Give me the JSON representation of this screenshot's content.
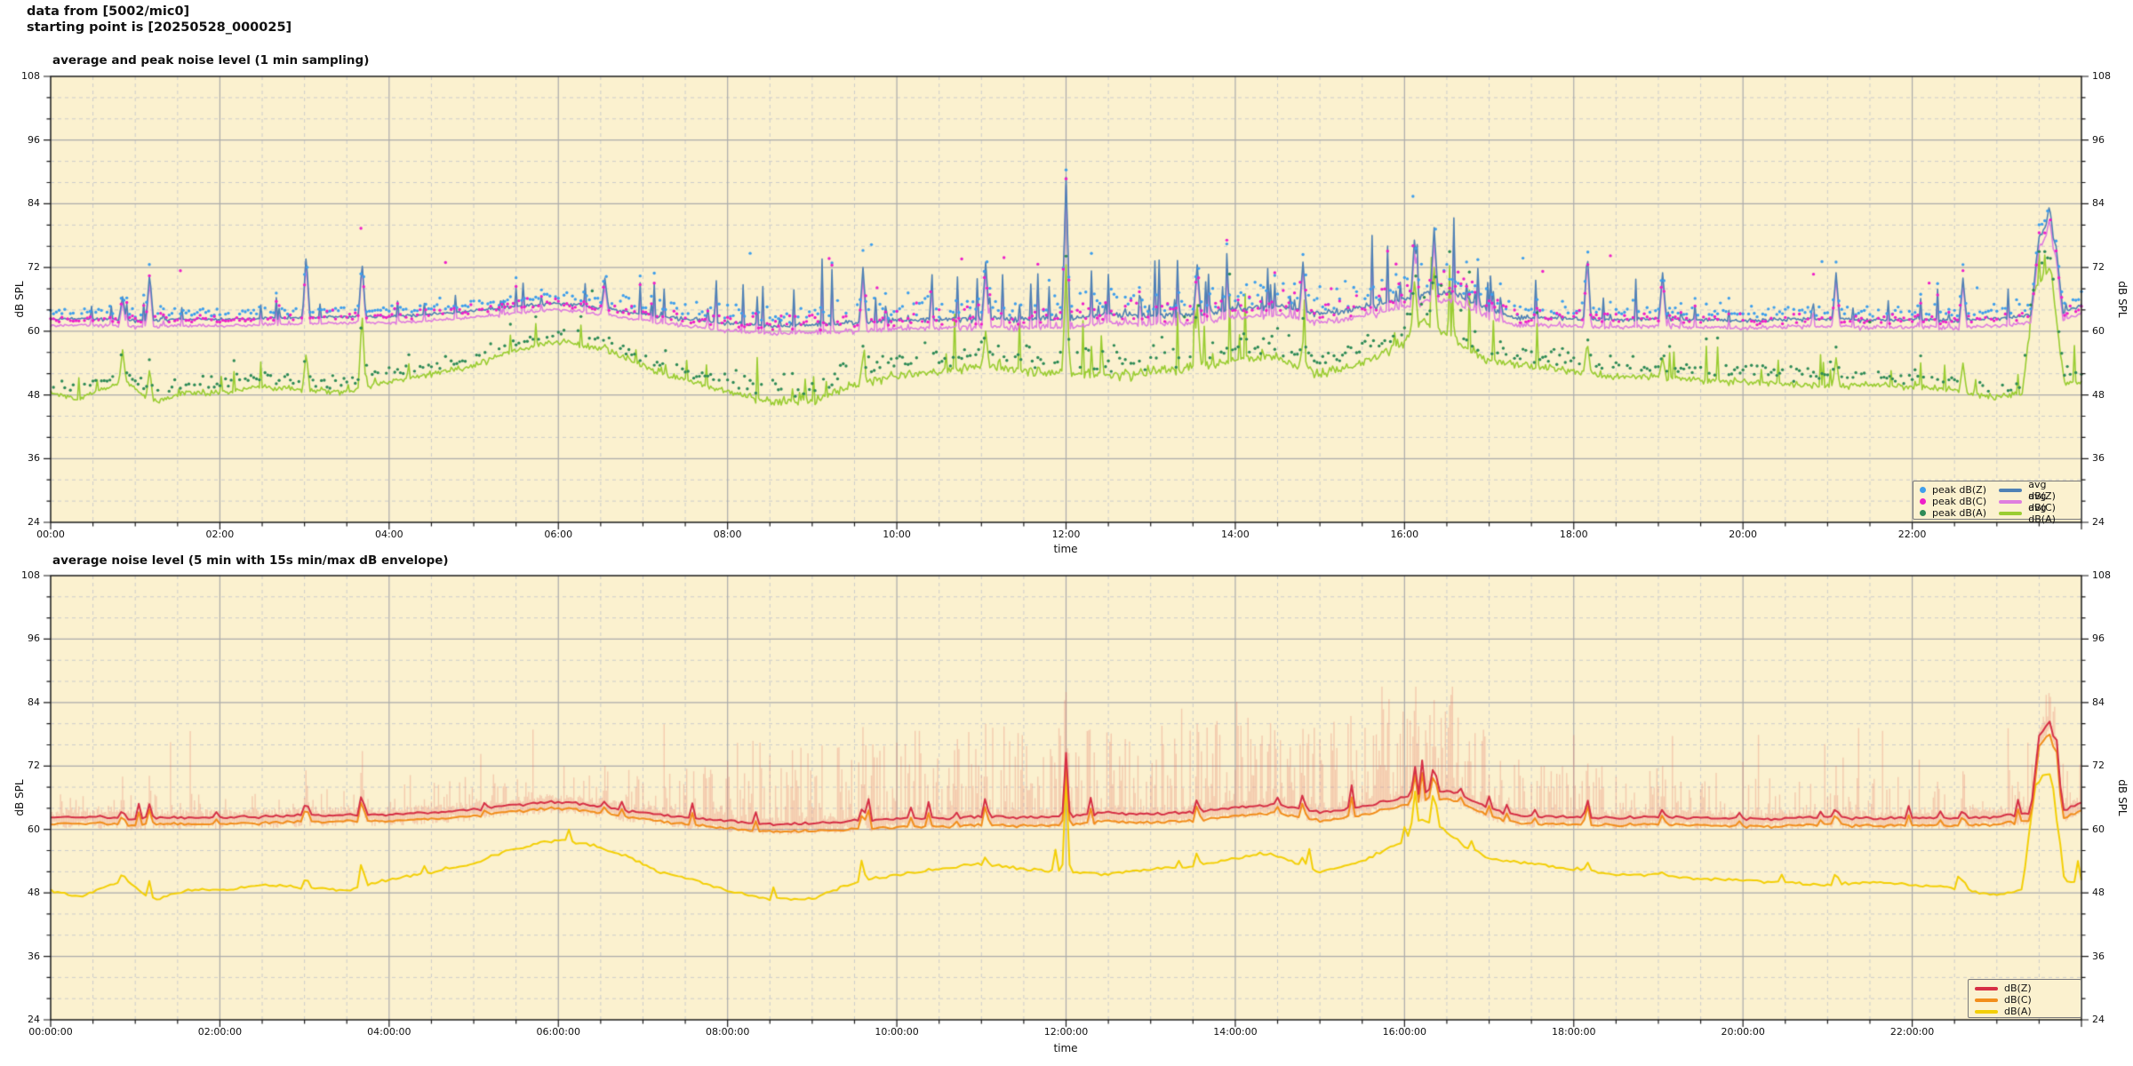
{
  "header": {
    "line1": "data from [5002/mic0]",
    "line2": "starting point is [20250528_000025]"
  },
  "charts": [
    {
      "title": "average and peak noise level (1 min sampling)",
      "xlabel": "time",
      "ylabel_left": "dB SPL",
      "ylabel_right": "dB SPL",
      "x_tick_labels": [
        "00:00",
        "02:00",
        "04:00",
        "06:00",
        "08:00",
        "10:00",
        "12:00",
        "14:00",
        "16:00",
        "18:00",
        "20:00",
        "22:00"
      ],
      "y_tick_labels": [
        "24",
        "36",
        "48",
        "60",
        "72",
        "84",
        "96",
        "108"
      ],
      "legend": {
        "peaks": [
          {
            "label": "peak dB(Z)",
            "color": "#3f9fec"
          },
          {
            "label": "peak dB(C)",
            "color": "#ee1fc9"
          },
          {
            "label": "peak dB(A)",
            "color": "#2e8b57"
          }
        ],
        "avgs": [
          {
            "label": "avg dB(Z)",
            "color": "#4f81b5"
          },
          {
            "label": "avg dB(C)",
            "color": "#df7ddf"
          },
          {
            "label": "avg dB(A)",
            "color": "#9acd32"
          }
        ]
      }
    },
    {
      "title": "average noise level (5 min with 15s min/max dB envelope)",
      "xlabel": "time",
      "ylabel_left": "dB SPL",
      "ylabel_right": "dB SPL",
      "x_tick_labels": [
        "00:00:00",
        "02:00:00",
        "04:00:00",
        "06:00:00",
        "08:00:00",
        "10:00:00",
        "12:00:00",
        "14:00:00",
        "16:00:00",
        "18:00:00",
        "20:00:00",
        "22:00:00"
      ],
      "y_tick_labels": [
        "24",
        "36",
        "48",
        "60",
        "72",
        "84",
        "96",
        "108"
      ],
      "legend": {
        "lines": [
          {
            "label": "dB(Z)",
            "color": "#d62f45"
          },
          {
            "label": "dB(C)",
            "color": "#f28e1c"
          },
          {
            "label": "dB(A)",
            "color": "#f3cf06"
          }
        ]
      }
    }
  ],
  "chart_data": {
    "type": "line+scatter",
    "x_unit": "hours",
    "xlim": [
      0,
      24
    ],
    "ylim": [
      24,
      108
    ],
    "y_major_step_db": 12,
    "y_minor_step_db": 4,
    "x_major_step_hours": 2,
    "x_minor_step_hours": 0.5,
    "grid": true,
    "legend_position": "lower right",
    "top_sampling_minutes": 1,
    "bottom_sampling_minutes": 5,
    "y_tick_values": [
      24,
      36,
      48,
      60,
      72,
      84,
      96,
      108
    ],
    "x_tick_hours": [
      0,
      2,
      4,
      6,
      8,
      10,
      12,
      14,
      16,
      18,
      20,
      22
    ],
    "colors": {
      "plot_bg": "#fbf1cf",
      "grid_major": "#ababab",
      "grid_minor": "#cccccc",
      "axis": "#1a1a1a",
      "avg_dbZ": "#4f81b5",
      "avg_dbC": "#df7ddf",
      "avg_dbA": "#9acd32",
      "peak_dbZ": "#3f9fec",
      "peak_dbC": "#ee1fc9",
      "peak_dbA": "#2e8b57",
      "dbZ": "#d62f45",
      "dbC": "#f28e1c",
      "dbA": "#f3cf06",
      "envelope": "rgba(229,115,100,0.30)"
    },
    "series_keyframes": {
      "avg_dbZ": [
        [
          0,
          62.2
        ],
        [
          0.5,
          62.4
        ],
        [
          1,
          62.0
        ],
        [
          1.5,
          62.3
        ],
        [
          2,
          62.2
        ],
        [
          2.5,
          62.4
        ],
        [
          3,
          62.6
        ],
        [
          3.5,
          62.8
        ],
        [
          4,
          62.8
        ],
        [
          4.5,
          63.2
        ],
        [
          5,
          63.8
        ],
        [
          5.5,
          64.6
        ],
        [
          5.9,
          65.2
        ],
        [
          6.2,
          65.0
        ],
        [
          6.5,
          64.3
        ],
        [
          7,
          63.2
        ],
        [
          7.5,
          62.3
        ],
        [
          8,
          61.6
        ],
        [
          8.5,
          61.0
        ],
        [
          9,
          61.2
        ],
        [
          9.5,
          61.6
        ],
        [
          10,
          62.0
        ],
        [
          10.5,
          62.2
        ],
        [
          11,
          62.4
        ],
        [
          11.5,
          62.3
        ],
        [
          12,
          62.4
        ],
        [
          12.5,
          63.2
        ],
        [
          13,
          62.8
        ],
        [
          13.5,
          63.2
        ],
        [
          14,
          64.2
        ],
        [
          14.5,
          64.6
        ],
        [
          15,
          63.2
        ],
        [
          15.5,
          64.4
        ],
        [
          16,
          66.0
        ],
        [
          16.3,
          67.5
        ],
        [
          16.6,
          67.0
        ],
        [
          17,
          64.0
        ],
        [
          17.3,
          62.6
        ],
        [
          18,
          62.4
        ],
        [
          18.5,
          62.2
        ],
        [
          19,
          62.4
        ],
        [
          19.5,
          62.2
        ],
        [
          20,
          62.0
        ],
        [
          20.5,
          62.2
        ],
        [
          21,
          62.3
        ],
        [
          21.5,
          62.1
        ],
        [
          22,
          62.2
        ],
        [
          22.5,
          62.1
        ],
        [
          23,
          62.4
        ],
        [
          23.4,
          63.0
        ],
        [
          23.5,
          78.0
        ],
        [
          23.62,
          80.0
        ],
        [
          23.7,
          76.0
        ],
        [
          23.78,
          63.5
        ],
        [
          24,
          65.0
        ]
      ],
      "avg_dbC": [
        [
          0,
          61.0
        ],
        [
          0.5,
          61.2
        ],
        [
          1,
          60.8
        ],
        [
          1.5,
          61.1
        ],
        [
          2,
          61.0
        ],
        [
          2.5,
          61.2
        ],
        [
          3,
          61.4
        ],
        [
          3.5,
          61.6
        ],
        [
          4,
          61.6
        ],
        [
          4.5,
          62.0
        ],
        [
          5,
          62.6
        ],
        [
          5.5,
          63.4
        ],
        [
          5.9,
          64.0
        ],
        [
          6.2,
          63.8
        ],
        [
          6.5,
          63.1
        ],
        [
          7,
          62.0
        ],
        [
          7.5,
          61.0
        ],
        [
          8,
          60.2
        ],
        [
          8.5,
          59.6
        ],
        [
          9,
          59.8
        ],
        [
          9.5,
          60.0
        ],
        [
          10,
          60.4
        ],
        [
          10.5,
          60.6
        ],
        [
          11,
          60.8
        ],
        [
          11.5,
          60.7
        ],
        [
          12,
          60.8
        ],
        [
          12.5,
          61.6
        ],
        [
          13,
          61.2
        ],
        [
          13.5,
          61.6
        ],
        [
          14,
          62.6
        ],
        [
          14.5,
          63.0
        ],
        [
          15,
          61.6
        ],
        [
          15.5,
          62.8
        ],
        [
          16,
          64.5
        ],
        [
          16.3,
          66.0
        ],
        [
          16.6,
          65.5
        ],
        [
          17,
          62.5
        ],
        [
          17.3,
          61.2
        ],
        [
          18,
          61.0
        ],
        [
          18.5,
          60.8
        ],
        [
          19,
          61.0
        ],
        [
          19.5,
          60.8
        ],
        [
          20,
          60.6
        ],
        [
          20.5,
          60.8
        ],
        [
          21,
          60.9
        ],
        [
          21.5,
          60.7
        ],
        [
          22,
          60.8
        ],
        [
          22.5,
          60.7
        ],
        [
          23,
          61.0
        ],
        [
          23.4,
          61.6
        ],
        [
          23.5,
          76.0
        ],
        [
          23.62,
          78.0
        ],
        [
          23.7,
          74.0
        ],
        [
          23.78,
          62.0
        ],
        [
          24,
          63.5
        ]
      ],
      "avg_dbA": [
        [
          0,
          48.5
        ],
        [
          0.3,
          47.2
        ],
        [
          0.7,
          49.5
        ],
        [
          0.9,
          50.5
        ],
        [
          1.2,
          46.5
        ],
        [
          1.6,
          48.5
        ],
        [
          2,
          48.5
        ],
        [
          2.5,
          49.5
        ],
        [
          3,
          49.0
        ],
        [
          3.5,
          48.5
        ],
        [
          4,
          50.5
        ],
        [
          4.5,
          52.0
        ],
        [
          5,
          53.5
        ],
        [
          5.4,
          56.0
        ],
        [
          5.8,
          57.5
        ],
        [
          6.1,
          58.0
        ],
        [
          6.4,
          57.0
        ],
        [
          6.8,
          55.0
        ],
        [
          7.2,
          52.0
        ],
        [
          7.6,
          50.5
        ],
        [
          8,
          48.5
        ],
        [
          8.4,
          47.0
        ],
        [
          9,
          46.8
        ],
        [
          9.4,
          49.5
        ],
        [
          10,
          51.5
        ],
        [
          10.5,
          52.5
        ],
        [
          11,
          53.5
        ],
        [
          11.5,
          52.5
        ],
        [
          12,
          52.0
        ],
        [
          12.5,
          51.5
        ],
        [
          13,
          52.5
        ],
        [
          13.5,
          53.0
        ],
        [
          14,
          54.5
        ],
        [
          14.4,
          55.5
        ],
        [
          15,
          52.0
        ],
        [
          15.5,
          54.0
        ],
        [
          16,
          58.0
        ],
        [
          16.2,
          62.0
        ],
        [
          16.45,
          60.0
        ],
        [
          16.7,
          57.0
        ],
        [
          17,
          54.5
        ],
        [
          17.5,
          53.5
        ],
        [
          18,
          52.5
        ],
        [
          18.5,
          51.5
        ],
        [
          19,
          51.5
        ],
        [
          19.5,
          50.5
        ],
        [
          20,
          50.5
        ],
        [
          20.5,
          50.0
        ],
        [
          21,
          49.5
        ],
        [
          21.5,
          50.0
        ],
        [
          22,
          49.5
        ],
        [
          22.5,
          49.0
        ],
        [
          23,
          47.5
        ],
        [
          23.3,
          48.5
        ],
        [
          23.45,
          68.0
        ],
        [
          23.55,
          70.5
        ],
        [
          23.65,
          70.0
        ],
        [
          23.72,
          60.0
        ],
        [
          23.8,
          50.0
        ],
        [
          24,
          50.5
        ]
      ]
    },
    "activity_keyframes": [
      [
        0,
        0.15
      ],
      [
        3,
        0.18
      ],
      [
        6,
        0.3
      ],
      [
        7.5,
        0.45
      ],
      [
        9,
        0.95
      ],
      [
        12,
        1.0
      ],
      [
        15,
        0.95
      ],
      [
        15.5,
        1.15
      ],
      [
        16.6,
        1.25
      ],
      [
        17.2,
        0.55
      ],
      [
        18,
        0.5
      ],
      [
        20,
        0.4
      ],
      [
        22,
        0.35
      ],
      [
        23,
        0.4
      ],
      [
        24,
        0.5
      ]
    ],
    "events": [
      {
        "t": 0.85,
        "z1": 66.5,
        "c1": 65.5,
        "a1": 56.5,
        "z2": 64.0,
        "c2": 63.0,
        "a2": 52.0,
        "env": 70
      },
      {
        "t": 1.17,
        "z1": 71.0,
        "c1": 69.5,
        "a1": 53.0,
        "z2": 65.0,
        "c2": 64.0,
        "a2": 50.5,
        "env": 71
      },
      {
        "t": 3.02,
        "z1": 74.5,
        "c1": 73.0,
        "a1": 56.0,
        "z2": 66.0,
        "c2": 65.0,
        "a2": 51.5,
        "env": 72
      },
      {
        "t": 3.68,
        "z1": 73.0,
        "c1": 72.5,
        "a1": 63.5,
        "z2": 67.5,
        "c2": 66.5,
        "a2": 55.0,
        "env": 76
      },
      {
        "t": 6.55,
        "z1": 70.0,
        "c1": 68.5,
        "a1": 57.5,
        "z2": 65.5,
        "c2": 64.5,
        "a2": 55.5,
        "env": 72
      },
      {
        "t": 9.6,
        "z1": 72.0,
        "c1": 70.0,
        "a1": 55.0,
        "z2": 65.0,
        "c2": 64.0,
        "a2": 53.0,
        "env": 78
      },
      {
        "t": 11.05,
        "z1": 73.0,
        "c1": 71.0,
        "a1": 60.0,
        "z2": 66.5,
        "c2": 65.0,
        "a2": 55.0,
        "env": 80
      },
      {
        "t": 12.0,
        "z1": 89.0,
        "c1": 87.5,
        "a1": 72.5,
        "z2": 74.5,
        "c2": 73.0,
        "a2": 70.0,
        "env": 86,
        "pz": 90.2,
        "pc": 88.5,
        "pa": 73.0
      },
      {
        "t": 13.55,
        "z1": 72.5,
        "c1": 71.0,
        "a1": 65.0,
        "z2": 66.0,
        "c2": 65.0,
        "a2": 56.0,
        "env": 80
      },
      {
        "t": 14.8,
        "z1": 73.0,
        "c1": 71.5,
        "a1": 58.0,
        "z2": 67.0,
        "c2": 65.5,
        "a2": 55.0,
        "env": 79
      },
      {
        "t": 16.12,
        "z1": 78.0,
        "c1": 76.0,
        "a1": 70.0,
        "z2": 72.5,
        "c2": 71.0,
        "a2": 68.0,
        "env": 84
      },
      {
        "t": 16.35,
        "z1": 79.5,
        "c1": 77.0,
        "a1": 72.0,
        "z2": 73.5,
        "c2": 72.0,
        "a2": 69.5,
        "env": 84.5
      },
      {
        "t": 18.16,
        "z1": 75.0,
        "c1": 73.5,
        "a1": 58.0,
        "z2": 66.0,
        "c2": 65.0,
        "a2": 54.0,
        "env": 75
      },
      {
        "t": 19.05,
        "z1": 71.0,
        "c1": 70.0,
        "a1": 55.0,
        "z2": 64.0,
        "c2": 63.0,
        "a2": 52.0,
        "env": 72
      },
      {
        "t": 21.1,
        "z1": 71.0,
        "c1": 70.0,
        "a1": 55.0,
        "z2": 64.5,
        "c2": 63.5,
        "a2": 52.5,
        "env": 72
      },
      {
        "t": 22.6,
        "z1": 70.0,
        "c1": 69.0,
        "a1": 54.0,
        "z2": 64.0,
        "c2": 63.0,
        "a2": 51.5,
        "env": 71
      },
      {
        "t": 23.62,
        "z1": 83.5,
        "c1": 81.0,
        "a1": 72.0,
        "z2": 80.5,
        "c2": 78.0,
        "a2": 70.5,
        "env": 84
      }
    ]
  }
}
